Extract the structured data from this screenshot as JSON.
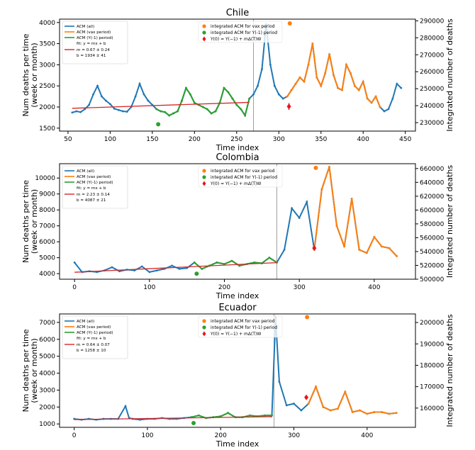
{
  "colors": {
    "all": "#1f77b4",
    "vax": "#ff7f0e",
    "ym1": "#2ca02c",
    "fit": "#d62728",
    "marker_vax": "#ff7f0e",
    "marker_ym1": "#2ca02c",
    "marker_y0": "#e8141b"
  },
  "legend_left": {
    "all": "ACM (all)",
    "vax": "ACM (vax period)",
    "ym1": "ACM (Y(-1) period)",
    "fit_title": "fit: y = mx + b"
  },
  "legend_right": {
    "vax": "integrated ACM for vax period",
    "ym1": "integrated ACM for Y(-1) period",
    "y0": "Y(0) = Y(−1) + mΔ(T)W"
  },
  "chart_data": [
    {
      "type": "line",
      "title": "Chile",
      "xlabel": "Time index",
      "ylabel": "Num deaths per time\n(week or month)",
      "ylabel_right": "Integrated number of deaths",
      "xlim": [
        40,
        462
      ],
      "ylim": [
        1430,
        4080
      ],
      "ylim_right": [
        225000,
        291000
      ],
      "xticks": [
        50,
        100,
        150,
        200,
        250,
        300,
        350,
        400,
        450
      ],
      "yticks": [
        1500,
        2000,
        2500,
        3000,
        3500,
        4000
      ],
      "yticks_right": [
        230000,
        240000,
        250000,
        260000,
        270000,
        280000,
        290000
      ],
      "vline_x": 270,
      "fit": {
        "m": "0.67 ± 0.24",
        "b": "1934 ± 41",
        "x": [
          55,
          265
        ],
        "y": [
          1970,
          2110
        ]
      },
      "series": [
        {
          "name": "ACM (all)",
          "color": "#1f77b4",
          "x": [
            55,
            60,
            65,
            70,
            75,
            80,
            85,
            90,
            95,
            100,
            105,
            110,
            115,
            120,
            125,
            130,
            135,
            140,
            145,
            150,
            155,
            160,
            165,
            170,
            175,
            180,
            185,
            190,
            195,
            200,
            205,
            210,
            215,
            220,
            225,
            230,
            235,
            240,
            245,
            250,
            255,
            260,
            265,
            270,
            275,
            280,
            285,
            290,
            295,
            300,
            305,
            310,
            315,
            320,
            325,
            330,
            335,
            340,
            345,
            350,
            355,
            360,
            365,
            370,
            375,
            380,
            385,
            390,
            395,
            400,
            405,
            410,
            415,
            420,
            425,
            430,
            435,
            440,
            445
          ],
          "y": [
            1870,
            1900,
            1880,
            1950,
            2050,
            2300,
            2500,
            2250,
            2150,
            2070,
            1960,
            1930,
            1900,
            1890,
            2000,
            2250,
            2550,
            2300,
            2150,
            2050,
            1950,
            1900,
            1880,
            1800,
            1850,
            1900,
            2150,
            2450,
            2300,
            2100,
            2050,
            2000,
            1950,
            1850,
            1900,
            2100,
            2450,
            2350,
            2200,
            2050,
            1950,
            1800,
            2200,
            2300,
            2500,
            2900,
            3960,
            3000,
            2500,
            2300,
            2200,
            2250,
            2400,
            2550,
            2700,
            2600,
            3000,
            3500,
            2700,
            2500,
            2800,
            3250,
            2750,
            2450,
            2400,
            3000,
            2800,
            2500,
            2400,
            2600,
            2200,
            2100,
            2250,
            2000,
            1900,
            1950,
            2200,
            2550,
            2450
          ]
        },
        {
          "name": "ACM (Y(-1) period)",
          "color": "#2ca02c",
          "x": [
            155,
            160,
            165,
            170,
            175,
            180,
            185,
            190,
            195,
            200,
            205,
            210,
            215,
            220,
            225,
            230,
            235,
            240,
            245,
            250,
            255,
            260,
            265
          ],
          "y": [
            1950,
            1900,
            1880,
            1800,
            1850,
            1900,
            2150,
            2450,
            2300,
            2100,
            2050,
            2000,
            1950,
            1850,
            1900,
            2100,
            2450,
            2350,
            2200,
            2050,
            1950,
            1800,
            2200
          ]
        },
        {
          "name": "ACM (vax period)",
          "color": "#ff7f0e",
          "x": [
            310,
            315,
            320,
            325,
            330,
            335,
            340,
            345,
            350,
            355,
            360,
            365,
            370,
            375,
            380,
            385,
            390,
            395,
            400,
            405,
            410,
            415,
            420
          ],
          "y": [
            2250,
            2400,
            2550,
            2700,
            2600,
            3000,
            3500,
            2700,
            2500,
            2800,
            3250,
            2750,
            2450,
            2400,
            3000,
            2800,
            2500,
            2400,
            2600,
            2200,
            2100,
            2250,
            2000
          ]
        }
      ],
      "markers": [
        {
          "kind": "vax",
          "x": 313,
          "y2": 288500
        },
        {
          "kind": "ym1",
          "x": 157,
          "y2": 229000
        },
        {
          "kind": "y0",
          "x": 312,
          "y2": 239500,
          "err": 2000
        }
      ]
    },
    {
      "type": "line",
      "title": "Colombia",
      "xlabel": "Time index",
      "ylabel": "Num deaths per time\n(week or month)",
      "ylabel_right": "Integrated number of deaths",
      "xlim": [
        -20,
        455
      ],
      "ylim": [
        3650,
        10900
      ],
      "ylim_right": [
        500000,
        667000
      ],
      "xticks": [
        0,
        100,
        200,
        300,
        400
      ],
      "yticks": [
        4000,
        5000,
        6000,
        7000,
        8000,
        9000,
        10000
      ],
      "yticks_right": [
        500000,
        520000,
        540000,
        560000,
        580000,
        600000,
        620000,
        640000,
        660000
      ],
      "vline_x": 270,
      "fit": {
        "m": "2.23 ± 0.14",
        "b": "4087 ± 21",
        "x": [
          0,
          270
        ],
        "y": [
          4087,
          4690
        ]
      },
      "series": [
        {
          "name": "ACM (all)",
          "color": "#1f77b4",
          "x": [
            0,
            10,
            20,
            30,
            40,
            50,
            60,
            70,
            80,
            90,
            100,
            110,
            120,
            130,
            140,
            150,
            160,
            170,
            180,
            190,
            200,
            210,
            220,
            230,
            240,
            250,
            260,
            270,
            280,
            290,
            300,
            310,
            320,
            330,
            340,
            350,
            360,
            370,
            380,
            390,
            400,
            410,
            420,
            430
          ],
          "y": [
            4700,
            4100,
            4150,
            4100,
            4200,
            4400,
            4150,
            4250,
            4200,
            4450,
            4100,
            4200,
            4300,
            4500,
            4300,
            4350,
            4700,
            4300,
            4500,
            4700,
            4600,
            4800,
            4500,
            4600,
            4700,
            4650,
            5000,
            4700,
            5500,
            8100,
            7500,
            8500,
            5500,
            9300,
            10700,
            7000,
            5700,
            8700,
            5500,
            5300,
            6300,
            5700,
            5600,
            5100
          ]
        },
        {
          "name": "ACM (Y(-1) period)",
          "color": "#2ca02c",
          "x": [
            160,
            170,
            180,
            190,
            200,
            210,
            220,
            230,
            240,
            250,
            260,
            270
          ],
          "y": [
            4700,
            4300,
            4500,
            4700,
            4600,
            4800,
            4500,
            4600,
            4700,
            4650,
            5000,
            4700
          ]
        },
        {
          "name": "ACM (vax period)",
          "color": "#ff7f0e",
          "x": [
            320,
            330,
            340,
            350,
            360,
            370,
            380,
            390,
            400,
            410,
            420,
            430
          ],
          "y": [
            5500,
            9300,
            10700,
            7000,
            5700,
            8700,
            5500,
            5300,
            6300,
            5700,
            5600,
            5100
          ]
        }
      ],
      "markers": [
        {
          "kind": "vax",
          "x": 322,
          "y2": 661000
        },
        {
          "kind": "ym1",
          "x": 163,
          "y2": 508000
        },
        {
          "kind": "y0",
          "x": 320,
          "y2": 545000,
          "err": 0
        }
      ]
    },
    {
      "type": "line",
      "title": "Ecuador",
      "xlabel": "Time index",
      "ylabel": "Num deaths per time\n(week or month)",
      "ylabel_right": "Integrated number of deaths",
      "xlim": [
        -20,
        466
      ],
      "ylim": [
        800,
        7500
      ],
      "ylim_right": [
        151000,
        204000
      ],
      "xticks": [
        0,
        100,
        200,
        300,
        400
      ],
      "yticks": [
        1000,
        2000,
        3000,
        4000,
        5000,
        6000,
        7000
      ],
      "yticks_right": [
        160000,
        170000,
        180000,
        190000,
        200000
      ],
      "vline_x": 273,
      "fit": {
        "m": "0.64 ± 0.07",
        "b": "1258 ± 10",
        "x": [
          0,
          270
        ],
        "y": [
          1258,
          1430
        ]
      },
      "series": [
        {
          "name": "ACM (all)",
          "color": "#1f77b4",
          "x": [
            0,
            10,
            20,
            30,
            40,
            50,
            60,
            70,
            75,
            80,
            90,
            100,
            110,
            120,
            130,
            140,
            150,
            160,
            170,
            180,
            190,
            200,
            210,
            220,
            230,
            240,
            250,
            260,
            270,
            275,
            280,
            290,
            300,
            310,
            320,
            330,
            340,
            350,
            360,
            370,
            380,
            390,
            400,
            410,
            420,
            430,
            440
          ],
          "y": [
            1300,
            1250,
            1300,
            1250,
            1300,
            1300,
            1300,
            2050,
            1350,
            1300,
            1250,
            1300,
            1300,
            1350,
            1300,
            1300,
            1350,
            1400,
            1500,
            1350,
            1400,
            1450,
            1650,
            1400,
            1400,
            1500,
            1450,
            1500,
            1500,
            7300,
            3500,
            2100,
            2200,
            1800,
            2200,
            3200,
            2000,
            1800,
            1900,
            2900,
            1700,
            1800,
            1600,
            1700,
            1700,
            1600,
            1650
          ]
        },
        {
          "name": "ACM (Y(-1) period)",
          "color": "#2ca02c",
          "x": [
            160,
            170,
            180,
            190,
            200,
            210,
            220,
            230,
            240,
            250,
            260,
            270
          ],
          "y": [
            1400,
            1500,
            1350,
            1400,
            1450,
            1650,
            1400,
            1400,
            1500,
            1450,
            1500,
            1500
          ]
        },
        {
          "name": "ACM (vax period)",
          "color": "#ff7f0e",
          "x": [
            320,
            330,
            340,
            350,
            360,
            370,
            380,
            390,
            400,
            410,
            420,
            430,
            440
          ],
          "y": [
            2200,
            3200,
            2000,
            1800,
            1900,
            2900,
            1700,
            1800,
            1600,
            1700,
            1700,
            1600,
            1650
          ]
        }
      ],
      "markers": [
        {
          "kind": "vax",
          "x": 318,
          "y2": 202500
        },
        {
          "kind": "ym1",
          "x": 163,
          "y2": 153000
        },
        {
          "kind": "y0",
          "x": 317,
          "y2": 165000,
          "err": 600
        }
      ]
    }
  ]
}
